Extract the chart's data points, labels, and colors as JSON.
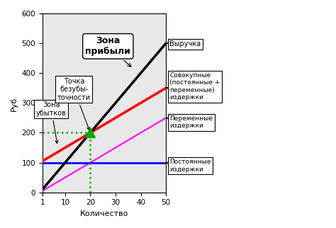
{
  "title_y": "Руб.",
  "title_x": "Количество",
  "xlim": [
    1,
    50
  ],
  "ylim": [
    0,
    600
  ],
  "xticks": [
    1,
    10,
    20,
    30,
    40,
    50
  ],
  "yticks": [
    0,
    100,
    200,
    300,
    400,
    500,
    600
  ],
  "fixed_cost": 100,
  "variable_cost_slope": 5,
  "revenue_slope": 10,
  "breakeven_x": 20,
  "breakeven_y": 200,
  "revenue_color": "#000000",
  "total_cost_color": "#ff0000",
  "variable_cost_color": "#ff00ff",
  "fixed_cost_color": "#0000ff",
  "dotted_color": "#00aa00",
  "marker_color": "#00aa00",
  "annotation_zona_ubytkov": "Зона\nубытков",
  "annotation_tochka": "Точка\nбезубы-\nточности",
  "annotation_zona_pribyli": "Зона\nприбыли",
  "annotation_vyruchka": "Выручка",
  "annotation_sovok": "Совокупные\n(постоянные +\nпеременные)\nиздержки",
  "annotation_pererem": "Переменные\nиздержки",
  "annotation_post": "Постоянные\nиздержки",
  "bg_color": "#ffffff",
  "plot_bg_color": "#e8e8e8"
}
